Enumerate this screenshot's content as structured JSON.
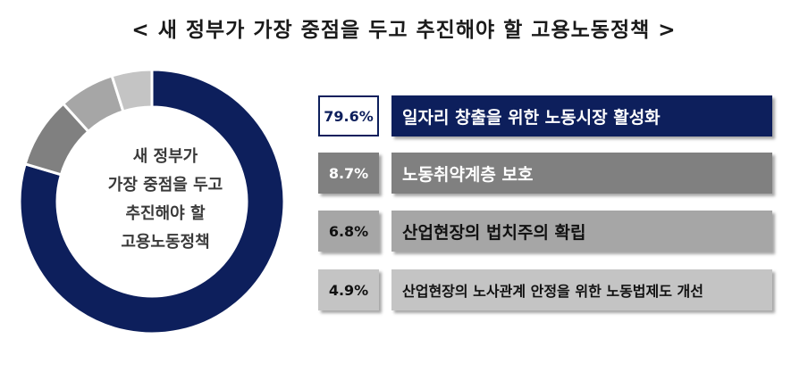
{
  "chart_data": {
    "type": "pie",
    "title": "< 새 정부가 가장 중점을 두고 추진해야 할 고용노동정책 >",
    "center_label": [
      "새 정부가",
      "가장 중점을 두고",
      "추진해야 할",
      "고용노동정책"
    ],
    "slices": [
      {
        "label": "일자리 창출을 위한 노동시장 활성화",
        "value": 79.6,
        "value_label": "79.6%",
        "color": "#0d1f5c"
      },
      {
        "label": "노동취약계층 보호",
        "value": 8.7,
        "value_label": "8.7%",
        "color": "#808080"
      },
      {
        "label": "산업현장의 법치주의 확립",
        "value": 6.8,
        "value_label": "6.8%",
        "color": "#a6a6a6"
      },
      {
        "label": "산업현장의 노사관계 안정을 위한 노동법제도 개선",
        "value": 4.9,
        "value_label": "4.9%",
        "color": "#c4c4c4"
      }
    ]
  }
}
